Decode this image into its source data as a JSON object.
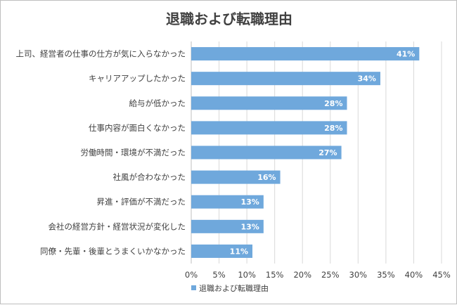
{
  "chart_data": {
    "type": "bar",
    "orientation": "horizontal",
    "title": "退職および転職理由",
    "categories": [
      "上司、経営者の仕事の仕方が気に入らなかった",
      "キャリアアップしたかった",
      "給与が低かった",
      "仕事内容が面白くなかった",
      "労働時間・環境が不満だった",
      "社風が合わなかった",
      "昇進・評価が不満だった",
      "会社の経営方針・経営状況が変化した",
      "同僚・先輩・後輩とうまくいかなかった"
    ],
    "series": [
      {
        "name": "退職および転職理由",
        "values": [
          41,
          34,
          28,
          28,
          27,
          16,
          13,
          13,
          11
        ],
        "labels": [
          "41%",
          "34%",
          "28%",
          "28%",
          "27%",
          "16%",
          "13%",
          "13%",
          "11%"
        ],
        "color": "#6fa8dc"
      }
    ],
    "xlim": [
      0,
      45
    ],
    "xticks": [
      "0%",
      "5%",
      "10%",
      "15%",
      "20%",
      "25%",
      "30%",
      "35%",
      "40%",
      "45%"
    ],
    "grid": "vertical",
    "legend": "bottom"
  }
}
